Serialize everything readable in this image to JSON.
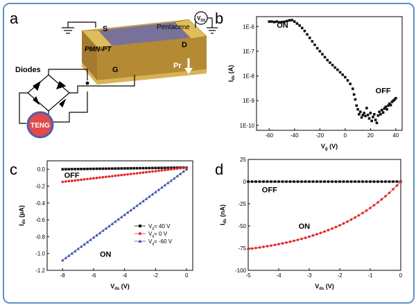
{
  "colors": {
    "frame": "#5b8fc9",
    "black_series": "#111111",
    "red_series": "#e3262b",
    "blue_series": "#3b4fa8",
    "teng": "#e24b4b",
    "pr_arrow": "#ffffff"
  },
  "panels": {
    "a": {
      "label": "a",
      "labels": {
        "source": "S",
        "drain": "D",
        "gate": "G",
        "channel": "Pentacene",
        "substrate": "PMN-PT",
        "polarization": "Pr",
        "vds": "V",
        "vds_sub": "DS",
        "diodes": "Diodes",
        "teng": "TENG"
      }
    }
  },
  "chart_data": [
    {
      "panel": "b",
      "type": "scatter",
      "title": "",
      "xlabel": "V",
      "xlabel_sub": "g",
      "xunit": " (V)",
      "ylabel": "I",
      "ylabel_sub": "ds",
      "yunit": " (A)",
      "xlim": [
        -70,
        45
      ],
      "ylim_log10": [
        -10.2,
        -5.6
      ],
      "yscale": "log",
      "xticks": [
        -60,
        -40,
        -20,
        0,
        20,
        40
      ],
      "yticks": [
        {
          "e": -6,
          "label": "1E-6"
        },
        {
          "e": -7,
          "label": "1E-7"
        },
        {
          "e": -8,
          "label": "1E-8"
        },
        {
          "e": -9,
          "label": "1E-9"
        },
        {
          "e": -10,
          "label": "1E-10"
        }
      ],
      "annotations": [
        {
          "text": "ON",
          "x": -54,
          "y_log10": -6.05
        },
        {
          "text": "OFF",
          "x": 24,
          "y_log10": -8.7
        }
      ],
      "series": [
        {
          "color": "#111111",
          "marker": "square",
          "points": [
            [
              -60,
              -5.8
            ],
            [
              -58,
              -5.8
            ],
            [
              -56,
              -5.82
            ],
            [
              -54,
              -5.8
            ],
            [
              -52,
              -5.83
            ],
            [
              -50,
              -5.82
            ],
            [
              -48,
              -5.81
            ],
            [
              -46,
              -5.78
            ],
            [
              -44,
              -5.75
            ],
            [
              -42,
              -5.74
            ],
            [
              -40,
              -5.8
            ],
            [
              -38,
              -5.88
            ],
            [
              -36,
              -5.96
            ],
            [
              -34,
              -6.06
            ],
            [
              -32,
              -6.18
            ],
            [
              -30,
              -6.32
            ],
            [
              -28,
              -6.46
            ],
            [
              -26,
              -6.6
            ],
            [
              -24,
              -6.74
            ],
            [
              -22,
              -6.88
            ],
            [
              -20,
              -7.0
            ],
            [
              -18,
              -7.12
            ],
            [
              -16,
              -7.24
            ],
            [
              -14,
              -7.36
            ],
            [
              -12,
              -7.46
            ],
            [
              -10,
              -7.56
            ],
            [
              -8,
              -7.66
            ],
            [
              -6,
              -7.75
            ],
            [
              -4,
              -7.85
            ],
            [
              -2,
              -7.95
            ],
            [
              0,
              -8.05
            ],
            [
              2,
              -8.18
            ],
            [
              4,
              -8.32
            ],
            [
              6,
              -8.52
            ],
            [
              7,
              -8.75
            ],
            [
              8,
              -8.95
            ],
            [
              9,
              -9.2
            ],
            [
              10,
              -9.35
            ],
            [
              11,
              -9.55
            ],
            [
              12,
              -9.45
            ],
            [
              13,
              -9.68
            ],
            [
              14,
              -9.58
            ],
            [
              15,
              -9.5
            ],
            [
              16,
              -9.62
            ],
            [
              17,
              -9.3
            ],
            [
              18,
              -9.58
            ],
            [
              19,
              -9.72
            ],
            [
              20,
              -9.5
            ],
            [
              21,
              -9.82
            ],
            [
              22,
              -9.66
            ],
            [
              23,
              -9.55
            ],
            [
              24,
              -9.78
            ],
            [
              25,
              -9.9
            ],
            [
              26,
              -9.6
            ],
            [
              27,
              -9.45
            ],
            [
              28,
              -9.55
            ],
            [
              29,
              -9.38
            ],
            [
              30,
              -9.48
            ],
            [
              31,
              -9.32
            ],
            [
              32,
              -9.25
            ],
            [
              33,
              -9.35
            ],
            [
              34,
              -9.2
            ],
            [
              35,
              -9.12
            ],
            [
              36,
              -9.18
            ],
            [
              37,
              -9.05
            ],
            [
              38,
              -9.0
            ],
            [
              39,
              -8.96
            ],
            [
              40,
              -8.9
            ]
          ]
        }
      ]
    },
    {
      "panel": "c",
      "type": "line",
      "title": "",
      "xlabel": "V",
      "xlabel_sub": "ds",
      "xunit": " (V)",
      "ylabel": "I",
      "ylabel_sub": "ds",
      "yunit": " (µA)",
      "xlim": [
        -9,
        0.4
      ],
      "ylim": [
        -1.2,
        0.1
      ],
      "xticks": [
        -8,
        -6,
        -4,
        -2,
        0
      ],
      "yticks": [
        0.0,
        -0.2,
        -0.4,
        -0.6,
        -0.8,
        -1.0,
        -1.2
      ],
      "legend": {
        "placement": "center-right",
        "entries": [
          {
            "label": "V",
            "sub": "g",
            "suffix": "= 40 V",
            "series": 0
          },
          {
            "label": "V",
            "sub": "g",
            "suffix": "= 0 V",
            "series": 1
          },
          {
            "label": "V",
            "sub": "g",
            "suffix": "= -60 V",
            "series": 2
          }
        ]
      },
      "annotations": [
        {
          "text": "OFF",
          "x": -7.9,
          "y": -0.1
        },
        {
          "text": "ON",
          "x": -5.6,
          "y": -1.04
        }
      ],
      "series": [
        {
          "color": "#111111",
          "marker": "square",
          "x0": -8,
          "x1": 0,
          "n": 41,
          "y_at_x0": 0.0,
          "y_at_x1": 0.02
        },
        {
          "color": "#e3262b",
          "marker": "circle",
          "x0": -8,
          "x1": 0,
          "n": 41,
          "y_at_x0": -0.15,
          "y_at_x1": 0.02
        },
        {
          "color": "#3b4fa8",
          "marker": "triangle",
          "x0": -8,
          "x1": 0,
          "n": 41,
          "y_at_x0": -1.08,
          "y_at_x1": 0.0
        }
      ]
    },
    {
      "panel": "d",
      "type": "line",
      "title": "",
      "xlabel": "V",
      "xlabel_sub": "ds",
      "xunit": " (V)",
      "ylabel": "I",
      "ylabel_sub": "ds",
      "yunit": " (nA)",
      "xlim": [
        -5,
        0
      ],
      "ylim": [
        -100,
        25
      ],
      "xticks": [
        -5,
        -4,
        -3,
        -2,
        -1,
        0
      ],
      "yticks": [
        25,
        0,
        -25,
        -50,
        -75,
        -100
      ],
      "annotations": [
        {
          "text": "OFF",
          "x": -4.55,
          "y": -12
        },
        {
          "text": "ON",
          "x": -3.35,
          "y": -53
        }
      ],
      "series": [
        {
          "color": "#111111",
          "marker": "square",
          "x0": -5,
          "x1": 0,
          "n": 41,
          "model": "flat",
          "y": 0
        },
        {
          "color": "#e3262b",
          "marker": "circle",
          "x0": -5,
          "x1": 0,
          "n": 41,
          "model": "saturating",
          "y_at_x0": -76
        }
      ]
    }
  ]
}
